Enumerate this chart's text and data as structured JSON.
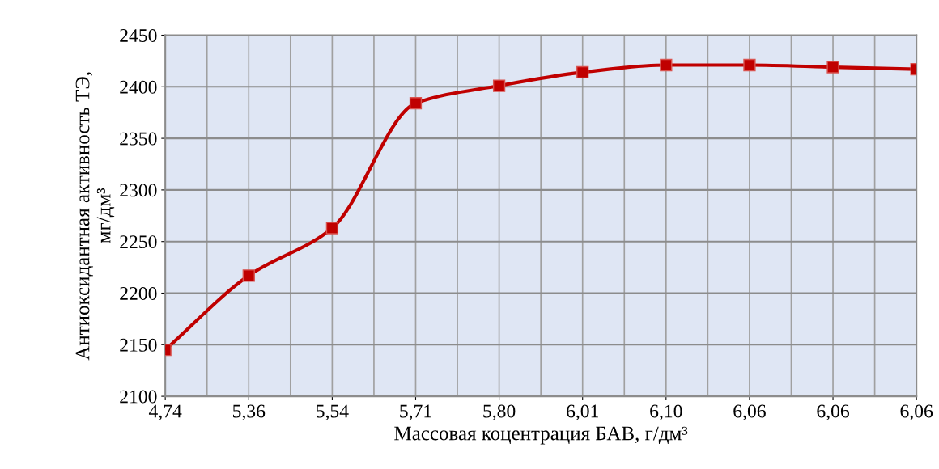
{
  "chart_data": {
    "type": "line",
    "xlabel": "Массовая коцентрация БАВ, г/дм³",
    "ylabel": "Антиоксидантная активность ТЭ,\nмг/дм³",
    "categories": [
      "4,74",
      "5,36",
      "5,54",
      "5,71",
      "5,80",
      "6,01",
      "6,10",
      "6,06",
      "6,06",
      "6,06"
    ],
    "series": [
      {
        "color": "#c00000",
        "values": [
          2145,
          2217,
          2263,
          2384,
          2401,
          2414,
          2421,
          2421,
          2419,
          2417
        ]
      }
    ],
    "ylim": [
      2100,
      2450
    ],
    "yticks": [
      2100,
      2150,
      2200,
      2250,
      2300,
      2350,
      2400,
      2450
    ],
    "grid": true,
    "marker": "square",
    "line_style": "solid"
  }
}
